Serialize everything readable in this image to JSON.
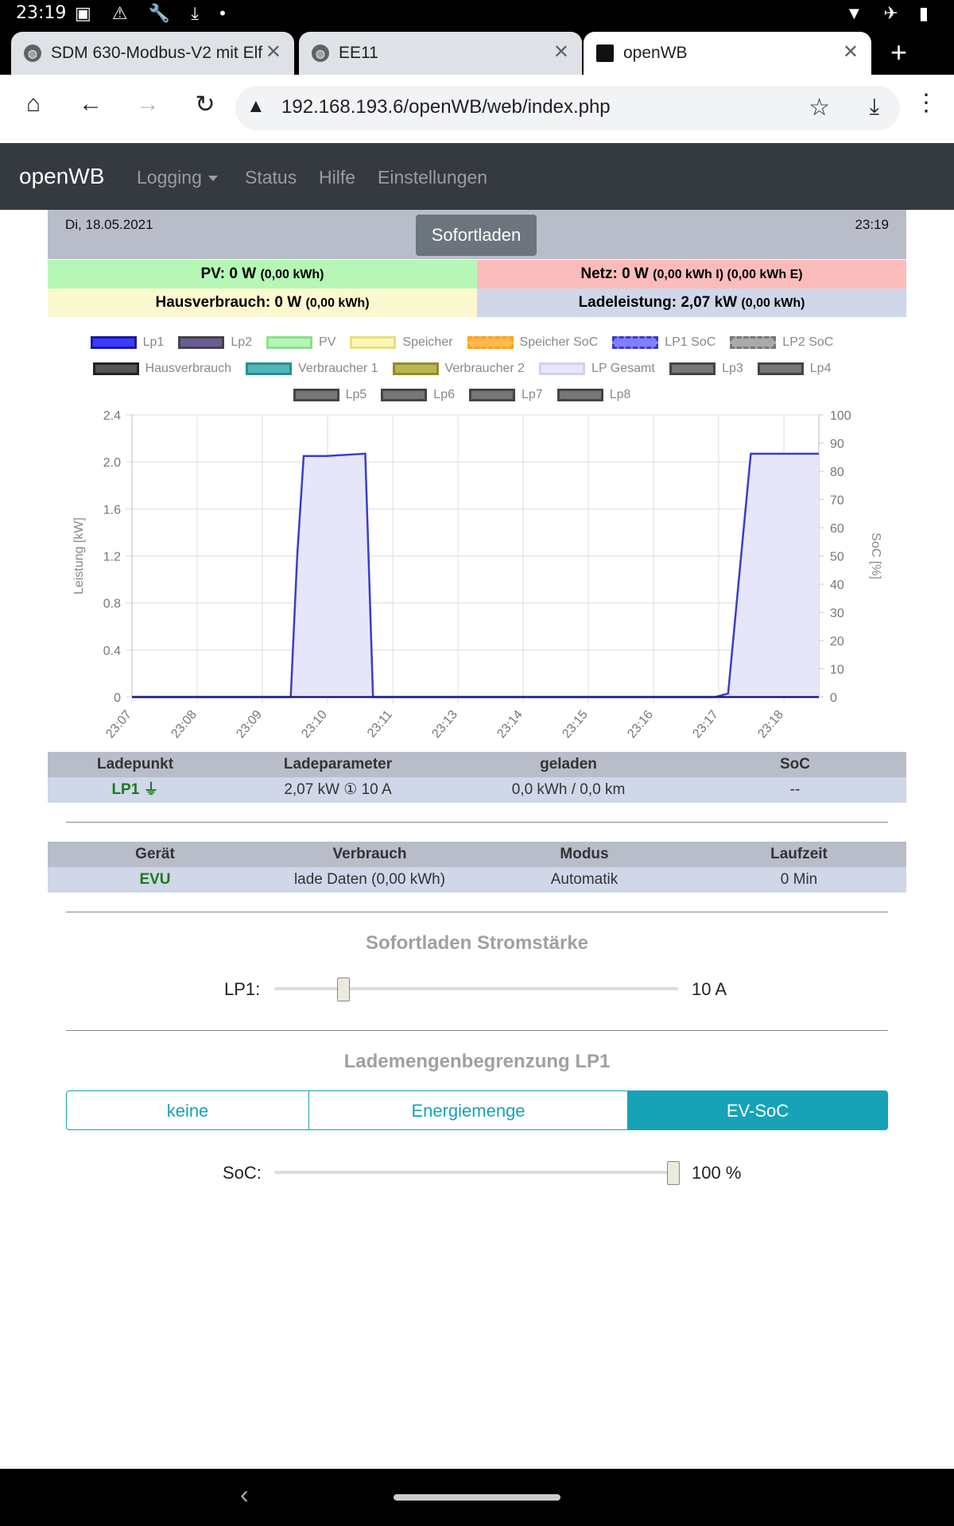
{
  "statusbar": {
    "time": "23:19",
    "left_icons": "▣ ⚠ 🔧 ⤓ •",
    "right_icons": "▼ ✈ ▮"
  },
  "tabs": [
    {
      "title": "SDM 630-Modbus-V2 mit Elf",
      "icon": "globe-icon",
      "active": false
    },
    {
      "title": "EE11",
      "icon": "globe-icon",
      "active": false
    },
    {
      "title": "openWB",
      "icon": "openwb-favicon",
      "active": true
    }
  ],
  "toolbar": {
    "url": "192.168.193.6/openWB/web/index.php"
  },
  "navbar": {
    "brand": "openWB",
    "links": [
      "Logging",
      "Status",
      "Hilfe",
      "Einstellungen"
    ]
  },
  "header": {
    "date": "Di, 18.05.2021",
    "mode_button": "Sofortladen",
    "time": "23:19"
  },
  "summary": {
    "pv": "PV: 0 W",
    "pv_small": "(0,00 kWh)",
    "netz": "Netz: 0 W",
    "netz_small": "(0,00 kWh I) (0,00 kWh E)",
    "haus": "Hausverbrauch: 0 W",
    "haus_small": "(0,00 kWh)",
    "lade": "Ladeleistung: 2,07 kW",
    "lade_small": "(0,00 kWh)"
  },
  "chart_data": {
    "type": "area",
    "ylabel": "Leistung [kW]",
    "y2label": "SoC [%]",
    "ylim": [
      0,
      2.4
    ],
    "y2lim": [
      0,
      100
    ],
    "yticks": [
      "0",
      "0.4",
      "0.8",
      "1.2",
      "1.6",
      "2.0",
      "2.4"
    ],
    "y2ticks": [
      "0",
      "10",
      "20",
      "30",
      "40",
      "50",
      "60",
      "70",
      "80",
      "90",
      "100"
    ],
    "xticks": [
      "23:07",
      "23:08",
      "23:09",
      "23:10",
      "23:11",
      "23:13",
      "23:14",
      "23:15",
      "23:16",
      "23:17",
      "23:18"
    ],
    "grid": true,
    "legend_position": "top",
    "legend": [
      {
        "name": "Lp1",
        "color": "#3c3cff",
        "border": "#1a1aa0"
      },
      {
        "name": "Lp2",
        "color": "#6b5b9a",
        "border": "#444"
      },
      {
        "name": "PV",
        "color": "#b6f7b6",
        "border": "#8de08d"
      },
      {
        "name": "Speicher",
        "color": "#fcf7b8",
        "border": "#e6e07a"
      },
      {
        "name": "Speicher SoC",
        "color": "#ffb84d",
        "border": "#ff9f1a"
      },
      {
        "name": "LP1 SoC",
        "color": "#8080ff",
        "border": "#3c3cc8"
      },
      {
        "name": "LP2 SoC",
        "color": "#aaaaaa",
        "border": "#777"
      },
      {
        "name": "Hausverbrauch",
        "color": "#555555",
        "border": "#222"
      },
      {
        "name": "Verbraucher 1",
        "color": "#4db8b8",
        "border": "#2a8e8e"
      },
      {
        "name": "Verbraucher 2",
        "color": "#b8b84d",
        "border": "#8e8e2a"
      },
      {
        "name": "LP Gesamt",
        "color": "#e6e6fb",
        "border": "#d0d0f0"
      },
      {
        "name": "Lp3",
        "color": "#777777",
        "border": "#444"
      },
      {
        "name": "Lp4",
        "color": "#777777",
        "border": "#444"
      },
      {
        "name": "Lp5",
        "color": "#777777",
        "border": "#444"
      },
      {
        "name": "Lp6",
        "color": "#777777",
        "border": "#444"
      },
      {
        "name": "Lp7",
        "color": "#777777",
        "border": "#444"
      },
      {
        "name": "Lp8",
        "color": "#777777",
        "border": "#444"
      }
    ],
    "series": [
      {
        "name": "Lp1",
        "x_minutes": [
          0,
          2.45,
          2.55,
          2.65,
          3.0,
          3.6,
          3.72,
          4.0,
          9.0,
          9.2,
          9.4,
          9.55,
          10.0,
          10.6
        ],
        "values": [
          0,
          0,
          1.2,
          2.05,
          2.05,
          2.07,
          0,
          0,
          0,
          0.03,
          1.2,
          2.07,
          2.07,
          2.07
        ]
      }
    ]
  },
  "ladepunkt_table": {
    "headers": [
      "Ladepunkt",
      "Ladeparameter",
      "geladen",
      "SoC"
    ],
    "row": [
      "LP1 ⏚",
      "2,07 kW ① 10 A",
      "0,0 kWh / 0,0 km",
      "--"
    ]
  },
  "geraete_table": {
    "headers": [
      "Gerät",
      "Verbrauch",
      "Modus",
      "Laufzeit"
    ],
    "row": [
      "EVU",
      "lade Daten (0,00 kWh)",
      "Automatik",
      "0 Min"
    ]
  },
  "sofortladen": {
    "title": "Sofortladen Stromstärke",
    "label": "LP1:",
    "value": "10 A",
    "level_fraction": 0.16
  },
  "lademenge": {
    "title": "Lademengenbegrenzung LP1",
    "options": [
      "keine",
      "Energiemenge",
      "EV-SoC"
    ],
    "active": "EV-SoC",
    "soc_label": "SoC:",
    "soc_value": "100 %",
    "soc_fraction": 1.0
  }
}
